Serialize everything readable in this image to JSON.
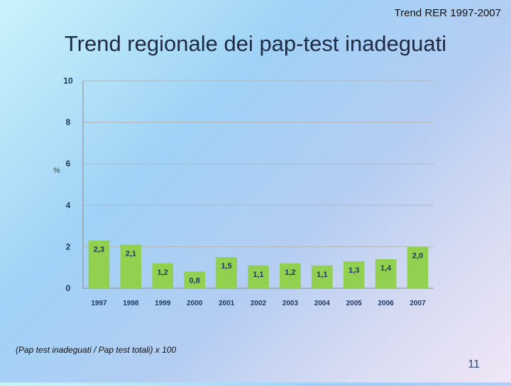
{
  "slide": {
    "header": "Trend RER 1997-2007",
    "title": "Trend regionale dei pap-test inadeguati",
    "footnote": "(Pap test inadeguati / Pap test totali) x 100",
    "page_number": "11"
  },
  "chart_data": {
    "type": "bar",
    "title": "Trend regionale dei pap-test inadeguati",
    "ylabel": "%",
    "xlabel": "",
    "categories": [
      "1997",
      "1998",
      "1999",
      "2000",
      "2001",
      "2002",
      "2003",
      "2004",
      "2005",
      "2006",
      "2007"
    ],
    "values": [
      2.3,
      2.1,
      1.2,
      0.8,
      1.5,
      1.1,
      1.2,
      1.1,
      1.3,
      1.4,
      2.0
    ],
    "data_labels": [
      "2,3",
      "2,1",
      "1,2",
      "0,8",
      "1,5",
      "1,1",
      "1,2",
      "1,1",
      "1,3",
      "1,4",
      "2,0"
    ],
    "ylim": [
      0,
      10
    ],
    "yticks": [
      "0",
      "2",
      "4",
      "6",
      "8",
      "10"
    ],
    "grid": true,
    "bar_color": "#92d050",
    "gridline_color": "#b7b7b7"
  }
}
